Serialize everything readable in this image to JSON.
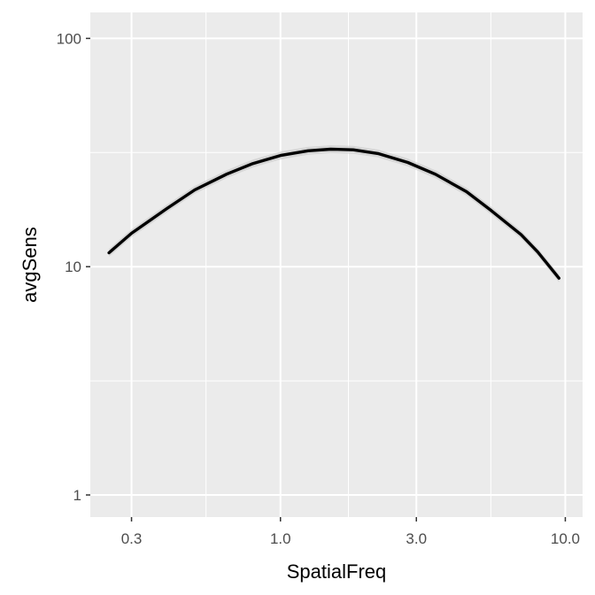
{
  "chart_data": {
    "type": "line",
    "title": "",
    "xlabel": "SpatialFreq",
    "ylabel": "avgSens",
    "x_scale": "log10",
    "y_scale": "log10",
    "xlim": [
      0.215,
      11.5
    ],
    "ylim": [
      0.8,
      130
    ],
    "x_ticks": [
      {
        "value": 0.3,
        "label": "0.3"
      },
      {
        "value": 1.0,
        "label": "1.0"
      },
      {
        "value": 3.0,
        "label": "3.0"
      },
      {
        "value": 10.0,
        "label": "10.0"
      }
    ],
    "y_ticks": [
      {
        "value": 1,
        "label": "1"
      },
      {
        "value": 10,
        "label": "10"
      },
      {
        "value": 100,
        "label": "100"
      }
    ],
    "grid": true,
    "background": "#ebebeb",
    "gridline_color": "#ffffff",
    "series": [
      {
        "color": "#000000",
        "band_color": "#c8c8c8",
        "x": [
          0.25,
          0.3,
          0.4,
          0.5,
          0.65,
          0.8,
          1.0,
          1.25,
          1.5,
          1.8,
          2.2,
          2.8,
          3.5,
          4.5,
          5.5,
          7.0,
          8.0,
          9.5
        ],
        "y": [
          11.5,
          14.0,
          18.0,
          21.7,
          25.5,
          28.3,
          30.7,
          32.2,
          32.7,
          32.5,
          31.3,
          28.6,
          25.4,
          21.3,
          17.6,
          13.8,
          11.6,
          8.9
        ]
      }
    ]
  }
}
